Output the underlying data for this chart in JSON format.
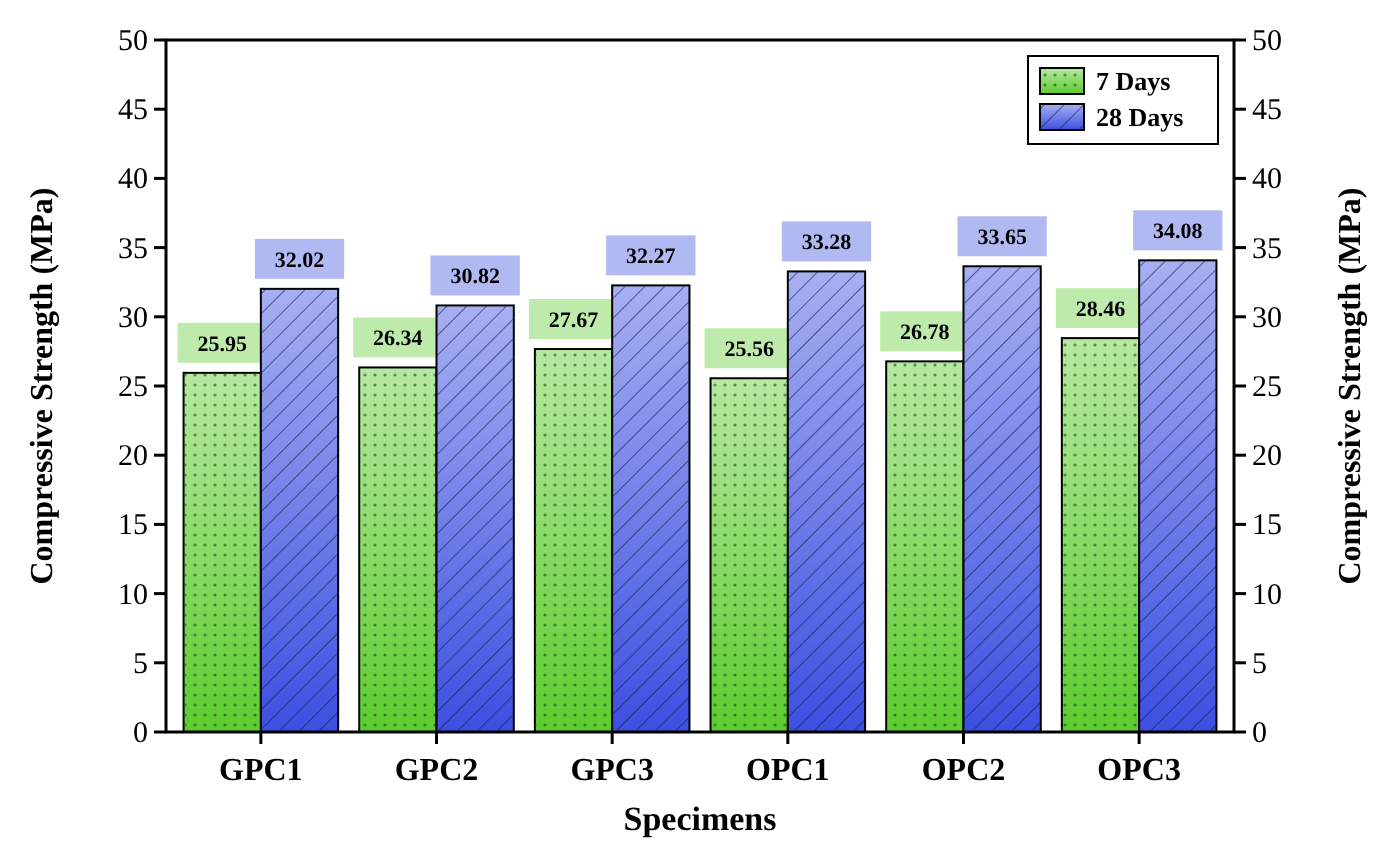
{
  "chart_data": {
    "type": "bar",
    "xlabel": "Specimens",
    "ylabel": "Compressive Strength (MPa)",
    "y2label": "Compressive Strength (MPa)",
    "categories": [
      "GPC1",
      "GPC2",
      "GPC3",
      "OPC1",
      "OPC2",
      "OPC3"
    ],
    "series": [
      {
        "name": "7 Days",
        "color": "#5ccc2e",
        "values": [
          25.95,
          26.34,
          27.67,
          25.56,
          26.78,
          28.46
        ]
      },
      {
        "name": "28 Days",
        "color": "#3c4fe0",
        "values": [
          32.02,
          30.82,
          32.27,
          33.28,
          33.65,
          34.08
        ]
      }
    ],
    "ylim": [
      0,
      50
    ],
    "yticks": [
      0,
      5,
      10,
      15,
      20,
      25,
      30,
      35,
      40,
      45,
      50
    ],
    "y2lim": [
      0,
      50
    ],
    "y2ticks": [
      0,
      5,
      10,
      15,
      20,
      25,
      30,
      35,
      40,
      45,
      50
    ],
    "data_labels": true,
    "legend": "top right",
    "grid": false
  }
}
